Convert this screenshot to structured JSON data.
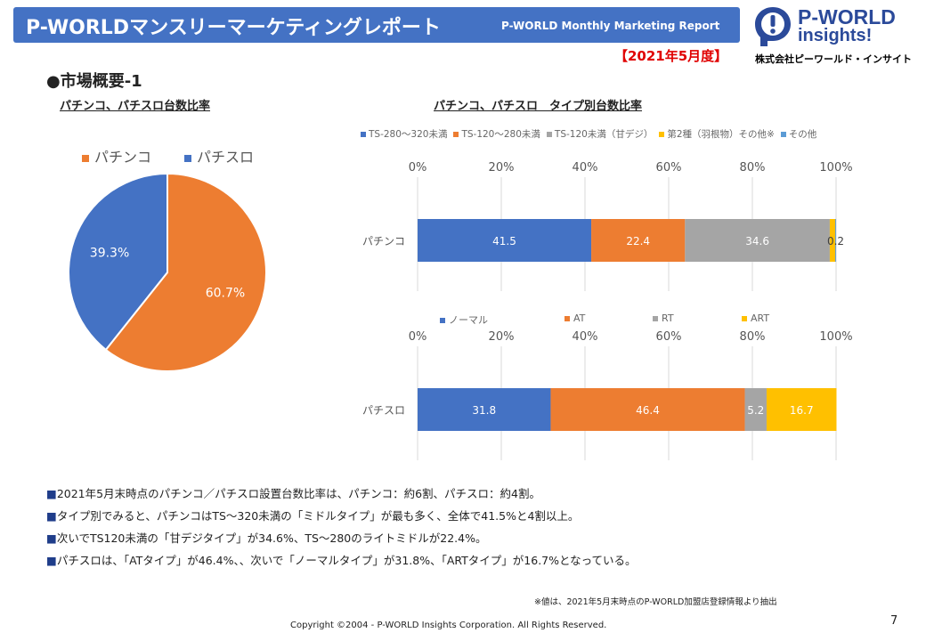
{
  "header": {
    "title": "P-WORLDマンスリーマーケティングレポート",
    "subtitle": "P-WORLD Monthly Marketing Report",
    "period": "【2021年5月度】",
    "company": "株式会社ピーワールド・インサイト",
    "logo_line1": "P-WORLD",
    "logo_line2": "insights!"
  },
  "section_title": "●市場概要-1",
  "colors": {
    "blue": "#4472c4",
    "orange": "#ed7d31",
    "gray": "#a5a5a5",
    "yellow": "#ffc000",
    "lightblue": "#5b9bd5"
  },
  "chart_data": [
    {
      "type": "pie",
      "title": "パチンコ、パチスロ台数比率",
      "legend": [
        "パチンコ",
        "パチスロ"
      ],
      "slices": [
        {
          "name": "パチンコ",
          "value": 60.7,
          "label": "60.7%",
          "color": "#ed7d31"
        },
        {
          "name": "パチスロ",
          "value": 39.3,
          "label": "39.3%",
          "color": "#4472c4"
        }
      ]
    },
    {
      "type": "bar",
      "orientation": "horizontal-stacked-100",
      "title": "パチンコ、パチスロ　タイプ別台数比率",
      "categories": [
        "パチンコ"
      ],
      "x_ticks": [
        "0%",
        "20%",
        "40%",
        "60%",
        "80%",
        "100%"
      ],
      "xlim": [
        0,
        100
      ],
      "series": [
        {
          "name": "TS-280～320未満",
          "values": [
            41.5
          ],
          "color": "#4472c4",
          "label": "41.5"
        },
        {
          "name": "TS-120～280未満",
          "values": [
            22.4
          ],
          "color": "#ed7d31",
          "label": "22.4"
        },
        {
          "name": "TS-120未満（甘デジ）",
          "values": [
            34.6
          ],
          "color": "#a5a5a5",
          "label": "34.6"
        },
        {
          "name": "第2種（羽根物）その他※",
          "values": [
            1.3
          ],
          "color": "#ffc000",
          "label": ""
        },
        {
          "name": "その他",
          "values": [
            0.2
          ],
          "color": "#5b9bd5",
          "label": "0.2"
        }
      ]
    },
    {
      "type": "bar",
      "orientation": "horizontal-stacked-100",
      "categories": [
        "パチスロ"
      ],
      "x_ticks": [
        "0%",
        "20%",
        "40%",
        "60%",
        "80%",
        "100%"
      ],
      "xlim": [
        0,
        100
      ],
      "series": [
        {
          "name": "ノーマル",
          "values": [
            31.8
          ],
          "color": "#4472c4",
          "label": "31.8"
        },
        {
          "name": "AT",
          "values": [
            46.4
          ],
          "color": "#ed7d31",
          "label": "46.4"
        },
        {
          "name": "RT",
          "values": [
            5.2
          ],
          "color": "#a5a5a5",
          "label": "5.2"
        },
        {
          "name": "ART",
          "values": [
            16.7
          ],
          "color": "#ffc000",
          "label": "16.7"
        }
      ]
    }
  ],
  "notes": [
    "2021年5月末時点のパチンコ／パチスロ設置台数比率は、パチンコ：約6割、パチスロ：約4割。",
    "タイプ別でみると、パチンコはTS～320未満の「ミドルタイプ」が最も多く、全体で41.5%と4割以上。",
    "次いでTS120未満の「甘デジタイプ」が34.6%、TS～280のライトミドルが22.4%。",
    "パチスロは、「ATタイプ」が46.4%、、次いで「ノーマルタイプ」が31.8%、「ARTタイプ」が16.7%となっている。"
  ],
  "note_marker": "■",
  "source_note": "※値は、2021年5月末時点のP-WORLD加盟店登録情報より抽出",
  "copyright": "Copyright ©2004 -  P-WORLD Insights Corporation. All Rights Reserved.",
  "page_number": "7"
}
